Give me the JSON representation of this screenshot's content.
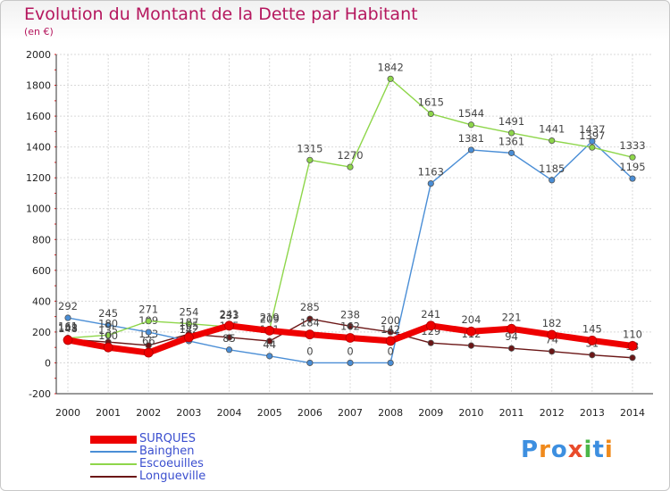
{
  "title": "Evolution du Montant de la Dette par Habitant",
  "subtitle": "(en €)",
  "logo": {
    "text": "Proxiti",
    "colors": [
      "#3d8fe0",
      "#f08a1c",
      "#3d8fe0",
      "#e94b2b",
      "#4cb648",
      "#3d8fe0",
      "#f08a1c"
    ]
  },
  "chart_data": {
    "type": "line",
    "x": [
      2000,
      2001,
      2002,
      2003,
      2004,
      2005,
      2006,
      2007,
      2008,
      2009,
      2010,
      2011,
      2012,
      2013,
      2014
    ],
    "ylim": [
      -200,
      2000
    ],
    "yticks": [
      -200,
      0,
      200,
      400,
      600,
      800,
      1000,
      1200,
      1400,
      1600,
      1800,
      2000
    ],
    "grid": true,
    "legend_position": "bottom-left",
    "series": [
      {
        "name": "Longueville",
        "color": "#6b1616",
        "values": [
          153,
          135,
          113,
          187,
          165,
          141,
          285,
          238,
          200,
          129,
          112,
          94,
          74,
          51,
          33
        ],
        "labels": [
          "153",
          "135",
          "113",
          "187",
          "165",
          "141",
          "285",
          "238",
          "200",
          "129",
          "112",
          "94",
          "74",
          "51",
          "33"
        ]
      },
      {
        "name": "Bainghen",
        "color": "#4a8ed6",
        "values": [
          292,
          245,
          199,
          142,
          85,
          44,
          0,
          0,
          0,
          1163,
          1381,
          1361,
          1185,
          1437,
          1195
        ],
        "labels": [
          "292",
          "245",
          "199",
          "142",
          "85",
          "44",
          "0",
          "0",
          "0",
          "1163",
          "1381",
          "1361",
          "1185",
          "1437",
          "1195"
        ]
      },
      {
        "name": "Escoeuilles",
        "color": "#8ed64a",
        "values": [
          161,
          180,
          271,
          254,
          233,
          219,
          1315,
          1270,
          1842,
          1615,
          1544,
          1491,
          1441,
          1397,
          1333
        ],
        "labels": [
          "161",
          "180",
          "271",
          "254",
          "233",
          "219",
          "1315",
          "1270",
          "1842",
          "1615",
          "1544",
          "1491",
          "1441",
          "1397",
          "1333"
        ]
      },
      {
        "name": "SURQUES",
        "color": "#ee0000",
        "values": [
          148,
          100,
          66,
          165,
          241,
          209,
          184,
          162,
          142,
          241,
          204,
          221,
          182,
          145,
          110
        ],
        "labels": [
          "148",
          "100",
          "66",
          "165",
          "241",
          "209",
          "184",
          "162",
          "142",
          "241",
          "204",
          "221",
          "182",
          "145",
          "110"
        ]
      }
    ],
    "legend": [
      "SURQUES",
      "Bainghen",
      "Escoeuilles",
      "Longueville"
    ]
  }
}
